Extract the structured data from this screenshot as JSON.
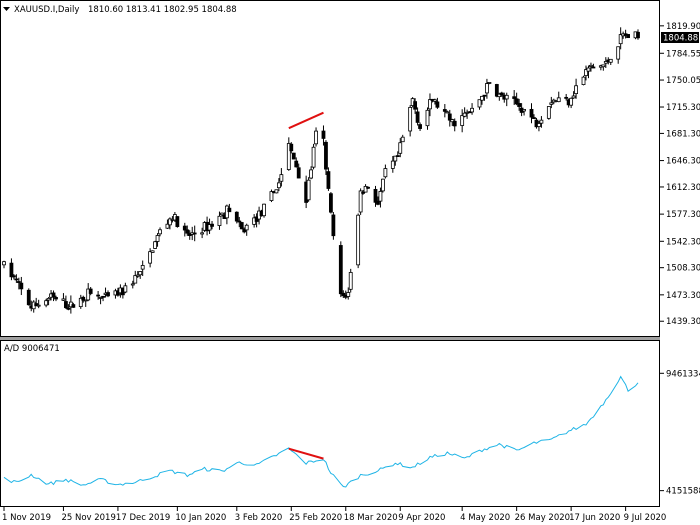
{
  "header": {
    "symbol": "XAUUSD.I,Daily",
    "ohlc": "1810.60 1813.41 1802.95 1804.88",
    "arrow_icon": "triangle-down-icon"
  },
  "indicator": {
    "label": "A/D 9006471"
  },
  "last_price_label": "1804.88",
  "colors": {
    "candle_up": "#ffffff",
    "candle_down": "#000000",
    "candle_outline": "#000000",
    "ad_line": "#1fb4e6",
    "divergence": "#e01010",
    "last_price_box": "#000000",
    "separator": "#808080"
  },
  "chart_data": [
    {
      "type": "candlestick",
      "title": "",
      "series_name": "XAUUSD.I,Daily",
      "y_axis_position": "right",
      "ylim": [
        1428,
        1830
      ],
      "y_ticks": [
        "1819.90",
        "1784.55",
        "1750.05",
        "1715.30",
        "1681.30",
        "1646.30",
        "1612.30",
        "1577.30",
        "1542.30",
        "1508.30",
        "1473.30",
        "1439.30"
      ],
      "last_value": 1804.88,
      "x_range": [
        "2019-11-01",
        "2020-07-14"
      ],
      "anchors": [
        [
          "2019-11-01",
          1512
        ],
        [
          "2019-11-06",
          1490
        ],
        [
          "2019-11-12",
          1457
        ],
        [
          "2019-11-20",
          1470
        ],
        [
          "2019-11-28",
          1458
        ],
        [
          "2019-12-05",
          1475
        ],
        [
          "2019-12-12",
          1468
        ],
        [
          "2019-12-19",
          1478
        ],
        [
          "2019-12-27",
          1505
        ],
        [
          "2020-01-03",
          1555
        ],
        [
          "2020-01-08",
          1575
        ],
        [
          "2020-01-14",
          1548
        ],
        [
          "2020-01-24",
          1565
        ],
        [
          "2020-01-31",
          1585
        ],
        [
          "2020-02-05",
          1555
        ],
        [
          "2020-02-14",
          1583
        ],
        [
          "2020-02-20",
          1618
        ],
        [
          "2020-02-24",
          1665
        ],
        [
          "2020-02-27",
          1640
        ],
        [
          "2020-03-02",
          1595
        ],
        [
          "2020-03-06",
          1680
        ],
        [
          "2020-03-09",
          1670
        ],
        [
          "2020-03-12",
          1575
        ],
        [
          "2020-03-16",
          1470
        ],
        [
          "2020-03-19",
          1475
        ],
        [
          "2020-03-24",
          1605
        ],
        [
          "2020-03-27",
          1615
        ],
        [
          "2020-03-31",
          1590
        ],
        [
          "2020-04-03",
          1630
        ],
        [
          "2020-04-08",
          1650
        ],
        [
          "2020-04-14",
          1725
        ],
        [
          "2020-04-17",
          1690
        ],
        [
          "2020-04-22",
          1725
        ],
        [
          "2020-04-30",
          1695
        ],
        [
          "2020-05-08",
          1710
        ],
        [
          "2020-05-15",
          1745
        ],
        [
          "2020-05-19",
          1730
        ],
        [
          "2020-05-28",
          1715
        ],
        [
          "2020-06-03",
          1695
        ],
        [
          "2020-06-09",
          1725
        ],
        [
          "2020-06-16",
          1725
        ],
        [
          "2020-06-24",
          1765
        ],
        [
          "2020-07-01",
          1770
        ],
        [
          "2020-07-08",
          1808
        ],
        [
          "2020-07-14",
          1805
        ]
      ],
      "divergence_line": [
        [
          "2020-02-24",
          1688
        ],
        [
          "2020-03-09",
          1708
        ]
      ]
    },
    {
      "type": "line",
      "title": "",
      "series_name": "A/D 9006471",
      "y_axis_position": "right",
      "ylim": [
        4090000,
        9520000
      ],
      "y_ticks": [
        "9461334",
        "4151588"
      ],
      "anchors": [
        [
          "2019-11-01",
          4700000
        ],
        [
          "2019-11-06",
          4520000
        ],
        [
          "2019-11-12",
          4870000
        ],
        [
          "2019-11-19",
          4450000
        ],
        [
          "2019-11-26",
          4650000
        ],
        [
          "2019-12-03",
          4400000
        ],
        [
          "2019-12-10",
          4650000
        ],
        [
          "2019-12-17",
          4430000
        ],
        [
          "2019-12-24",
          4530000
        ],
        [
          "2019-12-31",
          4780000
        ],
        [
          "2020-01-07",
          5050000
        ],
        [
          "2020-01-14",
          4850000
        ],
        [
          "2020-01-21",
          5130000
        ],
        [
          "2020-01-28",
          5030000
        ],
        [
          "2020-02-04",
          5430000
        ],
        [
          "2020-02-11",
          5300000
        ],
        [
          "2020-02-18",
          5700000
        ],
        [
          "2020-02-24",
          6050000
        ],
        [
          "2020-03-02",
          5400000
        ],
        [
          "2020-03-09",
          5600000
        ],
        [
          "2020-03-12",
          4950000
        ],
        [
          "2020-03-17",
          4300000
        ],
        [
          "2020-03-24",
          4850000
        ],
        [
          "2020-03-31",
          5050000
        ],
        [
          "2020-04-07",
          5400000
        ],
        [
          "2020-04-14",
          5200000
        ],
        [
          "2020-04-21",
          5650000
        ],
        [
          "2020-04-28",
          5850000
        ],
        [
          "2020-05-05",
          5600000
        ],
        [
          "2020-05-12",
          6000000
        ],
        [
          "2020-05-19",
          6250000
        ],
        [
          "2020-05-26",
          5950000
        ],
        [
          "2020-06-02",
          6300000
        ],
        [
          "2020-06-09",
          6450000
        ],
        [
          "2020-06-16",
          6850000
        ],
        [
          "2020-06-23",
          7150000
        ],
        [
          "2020-06-30",
          8100000
        ],
        [
          "2020-07-07",
          9300000
        ],
        [
          "2020-07-10",
          8700000
        ],
        [
          "2020-07-14",
          9050000
        ]
      ],
      "divergence_line": [
        [
          "2020-02-24",
          6050000
        ],
        [
          "2020-03-09",
          5600000
        ]
      ]
    }
  ],
  "x_axis_labels": [
    {
      "date": "2019-11-01",
      "text": "1 Nov 2019"
    },
    {
      "date": "2019-11-25",
      "text": "25 Nov 2019"
    },
    {
      "date": "2019-12-17",
      "text": "17 Dec 2019"
    },
    {
      "date": "2020-01-10",
      "text": "10 Jan 2020"
    },
    {
      "date": "2020-02-03",
      "text": "3 Feb 2020"
    },
    {
      "date": "2020-02-25",
      "text": "25 Feb 2020"
    },
    {
      "date": "2020-03-18",
      "text": "18 Mar 2020"
    },
    {
      "date": "2020-04-09",
      "text": "9 Apr 2020"
    },
    {
      "date": "2020-05-04",
      "text": "4 May 2020"
    },
    {
      "date": "2020-05-26",
      "text": "26 May 2020"
    },
    {
      "date": "2020-06-17",
      "text": "17 Jun 2020"
    },
    {
      "date": "2020-07-09",
      "text": "9 Jul 2020"
    }
  ]
}
